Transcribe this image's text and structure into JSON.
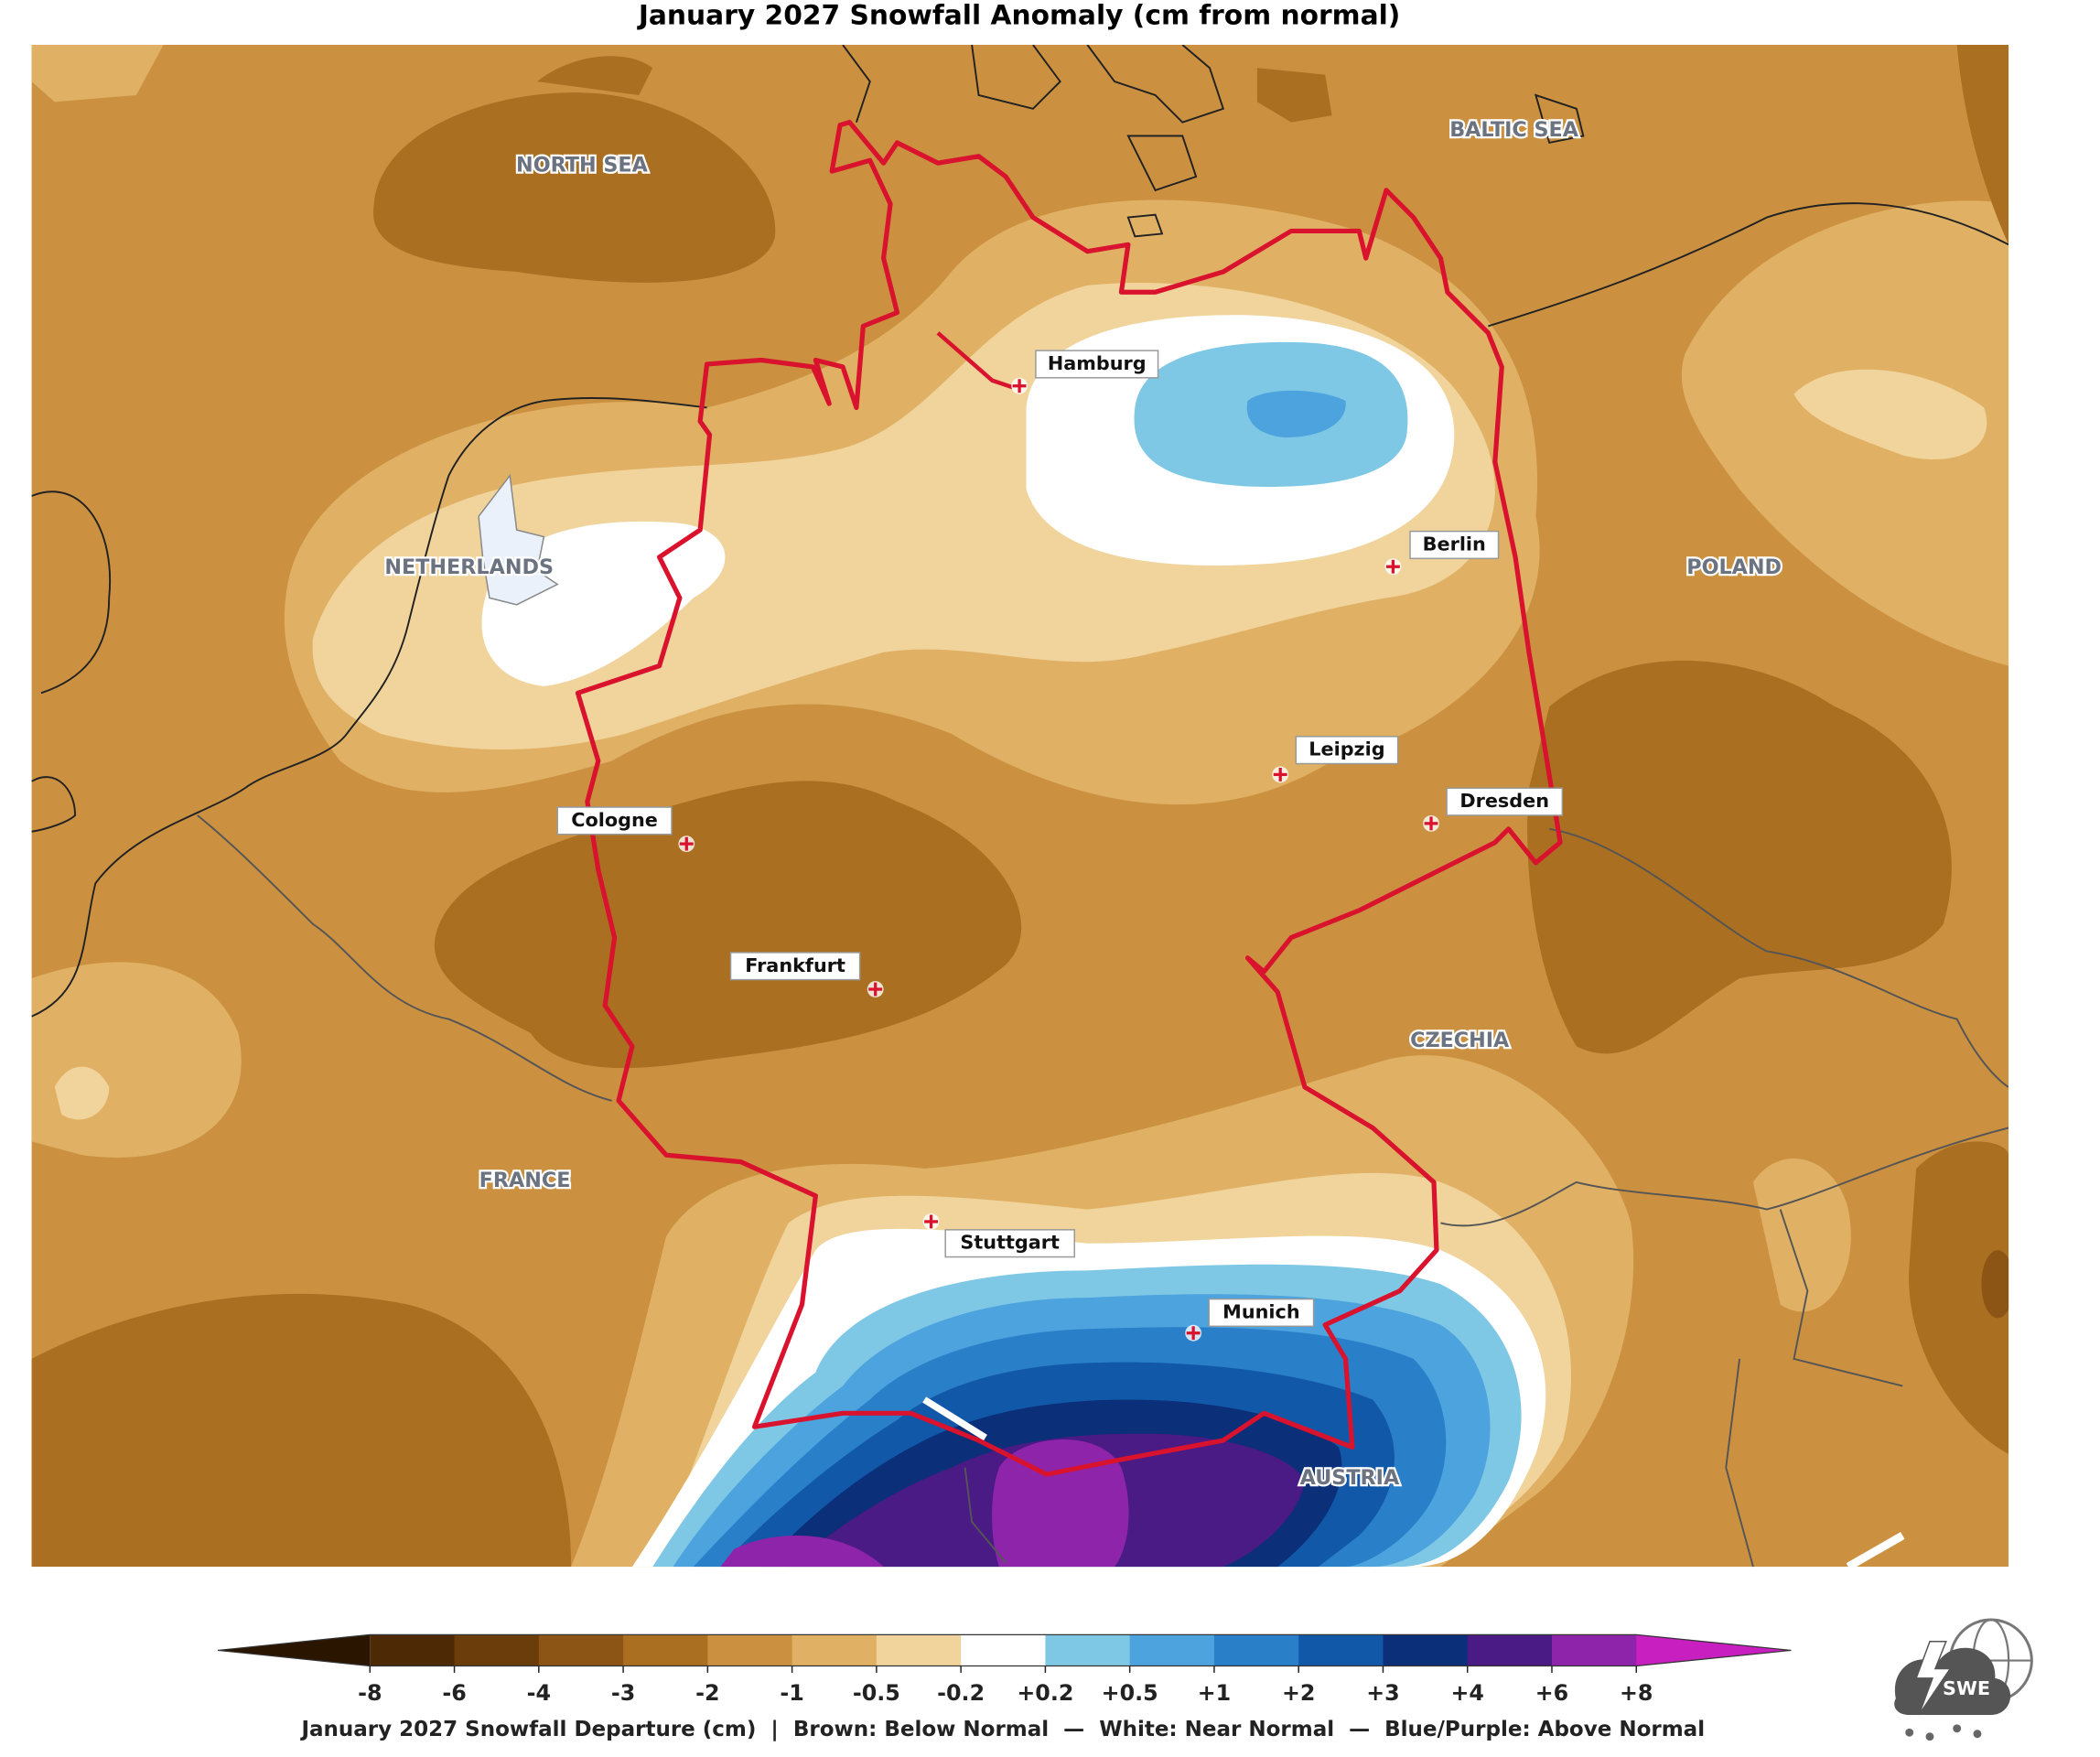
{
  "title": "January 2027 Snowfall Anomaly (cm from normal)",
  "regions": [
    "NORTH SEA",
    "BALTIC SEA",
    "NETHERLANDS",
    "POLAND",
    "CZECHIA",
    "FRANCE",
    "AUSTRIA"
  ],
  "cities": [
    "Hamburg",
    "Berlin",
    "Leipzig",
    "Dresden",
    "Cologne",
    "Frankfurt",
    "Stuttgart",
    "Munich"
  ],
  "colorbar": {
    "ticks": [
      "-8",
      "-6",
      "-4",
      "-3",
      "-2",
      "-1",
      "-0.5",
      "-0.2",
      "+0.2",
      "+0.5",
      "+1",
      "+2",
      "+3",
      "+4",
      "+6",
      "+8"
    ],
    "under_color": "#2a1500",
    "colors": [
      "#4d2a05",
      "#6b3d0a",
      "#8c5515",
      "#ab6f22",
      "#cb9140",
      "#e0b165",
      "#f0d49c",
      "#ffffff",
      "#7ec8e6",
      "#4da3dd",
      "#2a7fc9",
      "#1258a8",
      "#0b2f78",
      "#4a1a85",
      "#8e24aa"
    ],
    "over_color": "#c81fc0",
    "caption": "January 2027 Snowfall Departure (cm)  |  Brown: Below Normal  —  White: Near Normal  —  Blue/Purple: Above Normal"
  },
  "logo": "SWE"
}
